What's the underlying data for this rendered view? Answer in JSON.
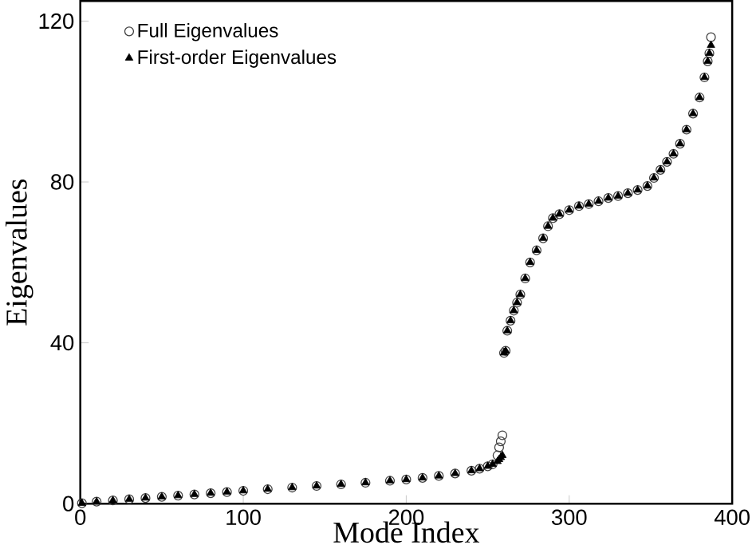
{
  "chart_data": {
    "type": "scatter",
    "xlabel": "Mode Index",
    "ylabel": "Eigenvalues",
    "x": [
      1,
      10,
      20,
      30,
      40,
      50,
      60,
      70,
      80,
      90,
      100,
      115,
      130,
      145,
      160,
      175,
      190,
      200,
      210,
      220,
      230,
      240,
      245,
      250,
      253,
      256,
      257,
      258,
      259,
      260,
      261,
      262,
      264,
      266,
      268,
      270,
      273,
      276,
      280,
      284,
      287,
      290,
      294,
      300,
      306,
      312,
      318,
      324,
      330,
      336,
      342,
      348,
      352,
      356,
      360,
      364,
      368,
      372,
      376,
      380,
      383,
      385,
      386,
      387
    ],
    "series": [
      {
        "name": "Full Eigenvalues",
        "color": "#404040",
        "marker": "circle",
        "values": [
          0.1,
          0.5,
          0.8,
          1.1,
          1.4,
          1.7,
          2.0,
          2.3,
          2.6,
          2.9,
          3.2,
          3.6,
          4.0,
          4.4,
          4.8,
          5.2,
          5.7,
          6.0,
          6.4,
          6.9,
          7.5,
          8.2,
          8.7,
          9.3,
          9.8,
          12,
          14,
          15.5,
          17,
          37.5,
          38,
          43,
          45.5,
          48,
          50,
          52,
          56,
          60,
          63,
          66,
          69,
          71,
          72,
          73,
          74,
          74.5,
          75.2,
          76,
          76.5,
          77.2,
          78,
          79,
          81,
          83,
          85,
          87,
          89.5,
          93,
          97,
          101,
          106,
          110,
          112,
          116
        ]
      },
      {
        "name": "First-order Eigenvalues",
        "color": "#000000",
        "marker": "triangle",
        "values": [
          0.1,
          0.5,
          0.8,
          1.1,
          1.4,
          1.7,
          2.0,
          2.3,
          2.6,
          2.9,
          3.2,
          3.6,
          4.0,
          4.4,
          4.8,
          5.2,
          5.7,
          6.0,
          6.4,
          6.9,
          7.5,
          8.2,
          8.7,
          9.3,
          9.8,
          10.5,
          11,
          11.5,
          12,
          37.5,
          38,
          43,
          45.5,
          48,
          50,
          52,
          56,
          60,
          63,
          66,
          69,
          71,
          72,
          73,
          74,
          74.5,
          75.2,
          76,
          76.5,
          77.2,
          78,
          79,
          81,
          83,
          85,
          87,
          89.5,
          93,
          97,
          101,
          106,
          110,
          112,
          114
        ]
      }
    ],
    "xlim": [
      0,
      400
    ],
    "ylim": [
      0,
      125
    ],
    "xticks": [
      0,
      100,
      200,
      300,
      400
    ],
    "yticks": [
      0,
      40,
      80,
      120
    ],
    "grid": false,
    "legend": "top left"
  }
}
